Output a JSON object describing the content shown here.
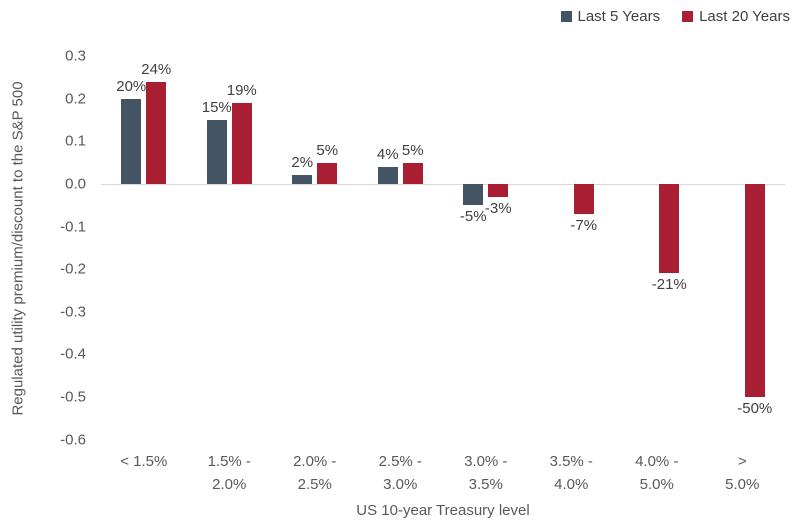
{
  "chart_data": {
    "type": "bar",
    "title": "",
    "xlabel": "US 10-year Treasury level",
    "ylabel": "Regulated utility premium/discount to the S&P 500",
    "ylim": [
      -0.6,
      0.3
    ],
    "ytick_values": [
      0.3,
      0.2,
      0.1,
      0.0,
      -0.1,
      -0.2,
      -0.3,
      -0.4,
      -0.5,
      -0.6
    ],
    "yticks": [
      "0.3",
      "0.2",
      "0.1",
      "0.0",
      "-0.1",
      "-0.2",
      "-0.3",
      "-0.4",
      "-0.5",
      "-0.6"
    ],
    "grid": "zero-line-only",
    "legend_position": "top-right",
    "categories": [
      "< 1.5%",
      "1.5% -\n2.0%",
      "2.0% -\n2.5%",
      "2.5% -\n3.0%",
      "3.0% -\n3.5%",
      "3.5% -\n4.0%",
      "4.0% -\n5.0%",
      "> 5.0%"
    ],
    "series": [
      {
        "name": "Last 5 Years",
        "color": "#435565",
        "values": [
          0.2,
          0.15,
          0.02,
          0.04,
          -0.05,
          null,
          null,
          null
        ],
        "labels": [
          "20%",
          "15%",
          "2%",
          "4%",
          "-5%",
          null,
          null,
          null
        ]
      },
      {
        "name": "Last 20 Years",
        "color": "#A91E32",
        "values": [
          0.24,
          0.19,
          0.05,
          0.05,
          -0.03,
          -0.07,
          -0.21,
          -0.5
        ],
        "labels": [
          "24%",
          "19%",
          "5%",
          "5%",
          "-3%",
          "-7%",
          "-21%",
          "-50%"
        ]
      }
    ]
  }
}
